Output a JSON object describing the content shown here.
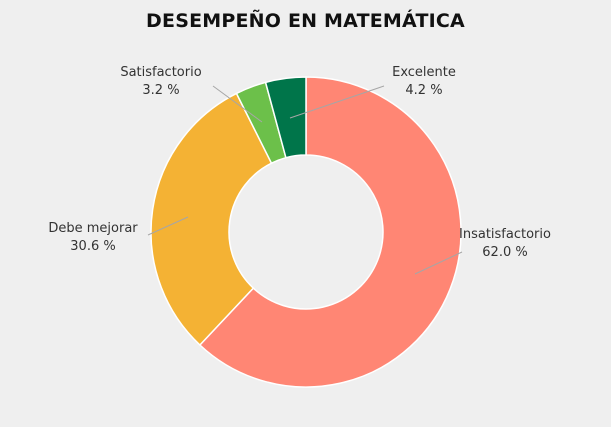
{
  "chart_data": {
    "type": "pie",
    "title": "DESEMPEÑO EN MATEMÁTICA",
    "categories": [
      "Insatisfactorio",
      "Debe mejorar",
      "Satisfactorio",
      "Excelente"
    ],
    "values": [
      62.0,
      30.6,
      3.2,
      4.2
    ],
    "value_labels": [
      "62.0 %",
      "30.6 %",
      "3.2 %",
      "4.2 %"
    ],
    "colors": [
      "#ff8674",
      "#f4b234",
      "#6cc04a",
      "#00754a"
    ],
    "donut": true,
    "legend": "none"
  }
}
